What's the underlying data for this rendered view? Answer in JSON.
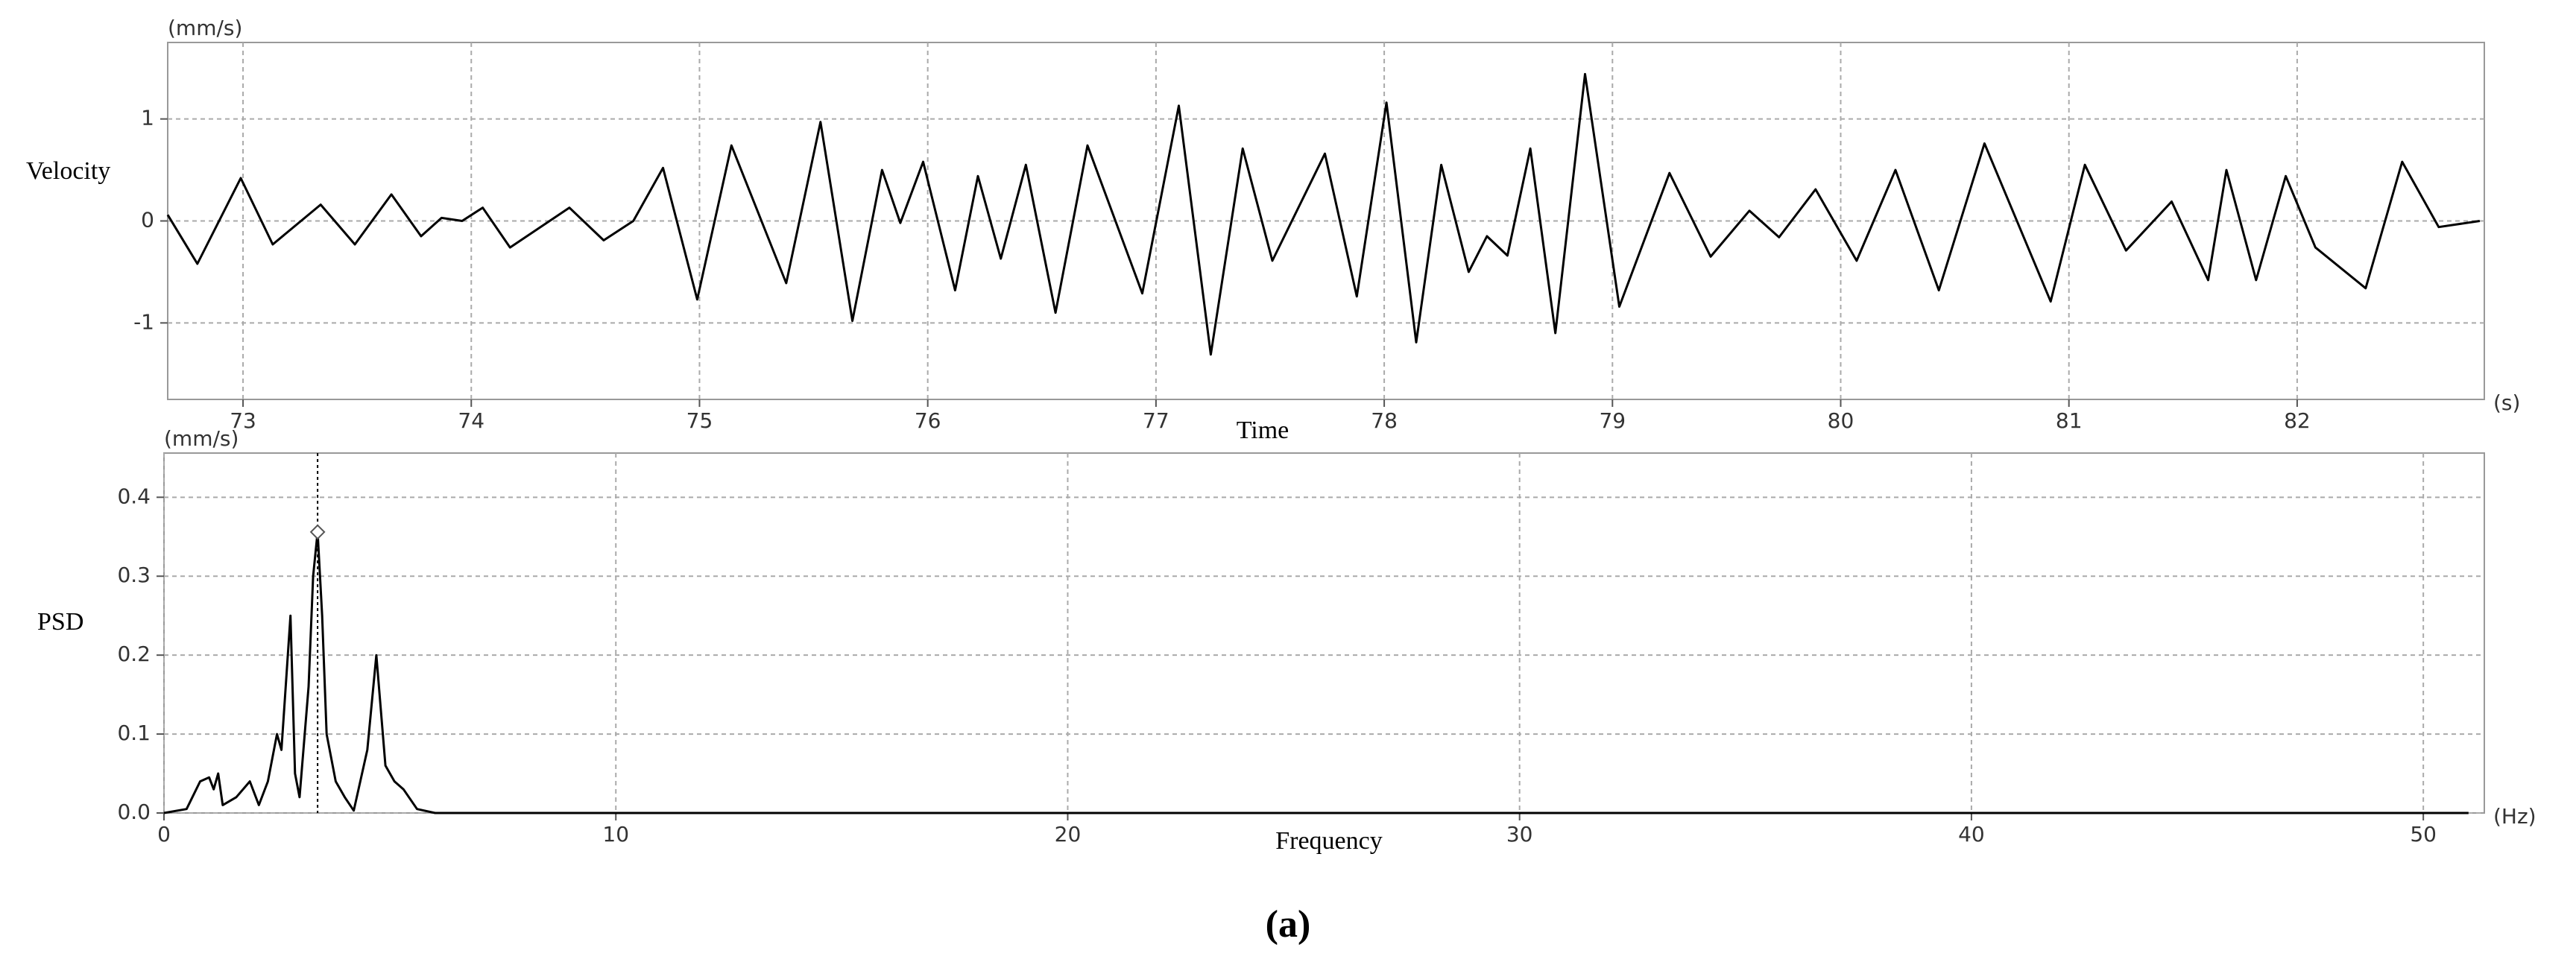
{
  "chart_data": [
    {
      "type": "line",
      "y_label": "Velocity",
      "x_label": "Time",
      "y_unit": "(mm/s)",
      "x_unit": "(s)",
      "color": "#000000",
      "grid": true,
      "x": [
        72.67,
        72.8,
        72.99,
        73.13,
        73.34,
        73.49,
        73.65,
        73.78,
        73.87,
        73.96,
        74.05,
        74.17,
        74.43,
        74.58,
        74.71,
        74.84,
        74.99,
        75.14,
        75.38,
        75.53,
        75.67,
        75.8,
        75.88,
        75.98,
        76.12,
        76.22,
        76.32,
        76.43,
        76.56,
        76.7,
        76.94,
        77.1,
        77.24,
        77.38,
        77.51,
        77.74,
        77.88,
        78.01,
        78.14,
        78.25,
        78.37,
        78.45,
        78.54,
        78.64,
        78.75,
        78.88,
        79.03,
        79.25,
        79.43,
        79.6,
        79.73,
        79.89,
        80.07,
        80.24,
        80.43,
        80.63,
        80.92,
        81.07,
        81.25,
        81.45,
        81.61,
        81.69,
        81.82,
        81.95,
        82.08,
        82.3,
        82.46,
        82.62,
        82.8
      ],
      "values": [
        0.06,
        -0.42,
        0.42,
        -0.23,
        0.16,
        -0.23,
        0.26,
        -0.15,
        0.03,
        0,
        0.13,
        -0.26,
        0.13,
        -0.19,
        0,
        0.52,
        -0.77,
        0.74,
        -0.61,
        0.97,
        -0.98,
        0.5,
        -0.02,
        0.58,
        -0.68,
        0.44,
        -0.37,
        0.55,
        -0.9,
        0.74,
        -0.71,
        1.13,
        -1.31,
        0.71,
        -0.39,
        0.66,
        -0.74,
        1.16,
        -1.19,
        0.55,
        -0.5,
        -0.15,
        -0.34,
        0.71,
        -1.1,
        1.44,
        -0.84,
        0.47,
        -0.35,
        0.1,
        -0.16,
        0.31,
        -0.39,
        0.5,
        -0.68,
        0.76,
        -0.79,
        0.55,
        -0.29,
        0.19,
        -0.58,
        0.5,
        -0.58,
        0.44,
        -0.26,
        -0.66,
        0.58,
        -0.06,
        0
      ],
      "xlim": [
        72.67,
        82.82
      ],
      "ylim": [
        -1.75,
        1.75
      ],
      "xticks": [
        73,
        74,
        75,
        76,
        77,
        78,
        79,
        80,
        81,
        82
      ],
      "yticks": [
        -1,
        0,
        1
      ]
    },
    {
      "type": "line",
      "y_label": "PSD",
      "x_label": "Frequency",
      "y_unit": "(mm/s)",
      "x_unit": "(Hz)",
      "color": "#000000",
      "grid": true,
      "x": [
        0,
        0.5,
        0.8,
        1.0,
        1.1,
        1.2,
        1.3,
        1.6,
        1.9,
        2.1,
        2.3,
        2.5,
        2.6,
        2.8,
        2.9,
        3.0,
        3.2,
        3.3,
        3.4,
        3.5,
        3.6,
        3.8,
        4.0,
        4.2,
        4.5,
        4.7,
        4.9,
        5.1,
        5.3,
        5.6,
        6,
        51
      ],
      "values": [
        0,
        0.005,
        0.04,
        0.045,
        0.03,
        0.05,
        0.01,
        0.02,
        0.04,
        0.01,
        0.04,
        0.1,
        0.08,
        0.25,
        0.05,
        0.02,
        0.16,
        0.3,
        0.356,
        0.25,
        0.1,
        0.04,
        0.02,
        0.003,
        0.08,
        0.2,
        0.06,
        0.04,
        0.03,
        0.005,
        0,
        0
      ],
      "marker": {
        "x": 3.4,
        "y": 0.356
      },
      "xlim": [
        0,
        51.35
      ],
      "ylim": [
        0,
        0.456
      ],
      "xticks": [
        0,
        10,
        20,
        30,
        40,
        50
      ],
      "yticks": [
        {
          "value": 0,
          "label": "0.0"
        },
        0.1,
        0.2,
        0.3,
        0.4
      ]
    }
  ],
  "caption": "(a)"
}
